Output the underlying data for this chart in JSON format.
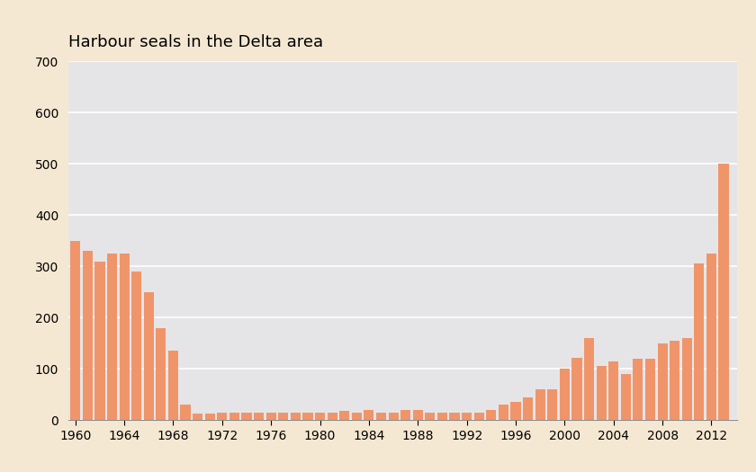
{
  "title": "Harbour seals in the Delta area",
  "background_color": "#f5e8d2",
  "plot_bg_color": "#e5e5e8",
  "bar_color": "#f0956a",
  "ylim": [
    0,
    700
  ],
  "yticks": [
    0,
    100,
    200,
    300,
    400,
    500,
    600,
    700
  ],
  "xtick_labels": [
    "1960",
    "1964",
    "1968",
    "1972",
    "1976",
    "1980",
    "1984",
    "1988",
    "1992",
    "1996",
    "2000",
    "2004",
    "2008",
    "2012"
  ],
  "xtick_positions": [
    1960,
    1964,
    1968,
    1972,
    1976,
    1980,
    1984,
    1988,
    1992,
    1996,
    2000,
    2004,
    2008,
    2012
  ],
  "years": [
    1960,
    1961,
    1962,
    1963,
    1964,
    1965,
    1966,
    1967,
    1968,
    1969,
    1970,
    1971,
    1972,
    1973,
    1974,
    1975,
    1976,
    1977,
    1978,
    1979,
    1980,
    1981,
    1982,
    1983,
    1984,
    1985,
    1986,
    1987,
    1988,
    1989,
    1990,
    1991,
    1992,
    1993,
    1994,
    1995,
    1996,
    1997,
    1998,
    1999,
    2000,
    2001,
    2002,
    2003,
    2004,
    2005,
    2006,
    2007,
    2008,
    2009,
    2010,
    2011,
    2012,
    2013
  ],
  "values": [
    350,
    330,
    310,
    325,
    325,
    290,
    250,
    180,
    135,
    30,
    13,
    13,
    14,
    14,
    14,
    14,
    14,
    14,
    14,
    14,
    14,
    14,
    18,
    14,
    20,
    14,
    14,
    20,
    20,
    14,
    14,
    14,
    14,
    14,
    20,
    30,
    35,
    45,
    60,
    60,
    100,
    122,
    160,
    105,
    115,
    90,
    120,
    120,
    150,
    155,
    160,
    305,
    325,
    500
  ],
  "title_fontsize": 13,
  "tick_fontsize": 10
}
